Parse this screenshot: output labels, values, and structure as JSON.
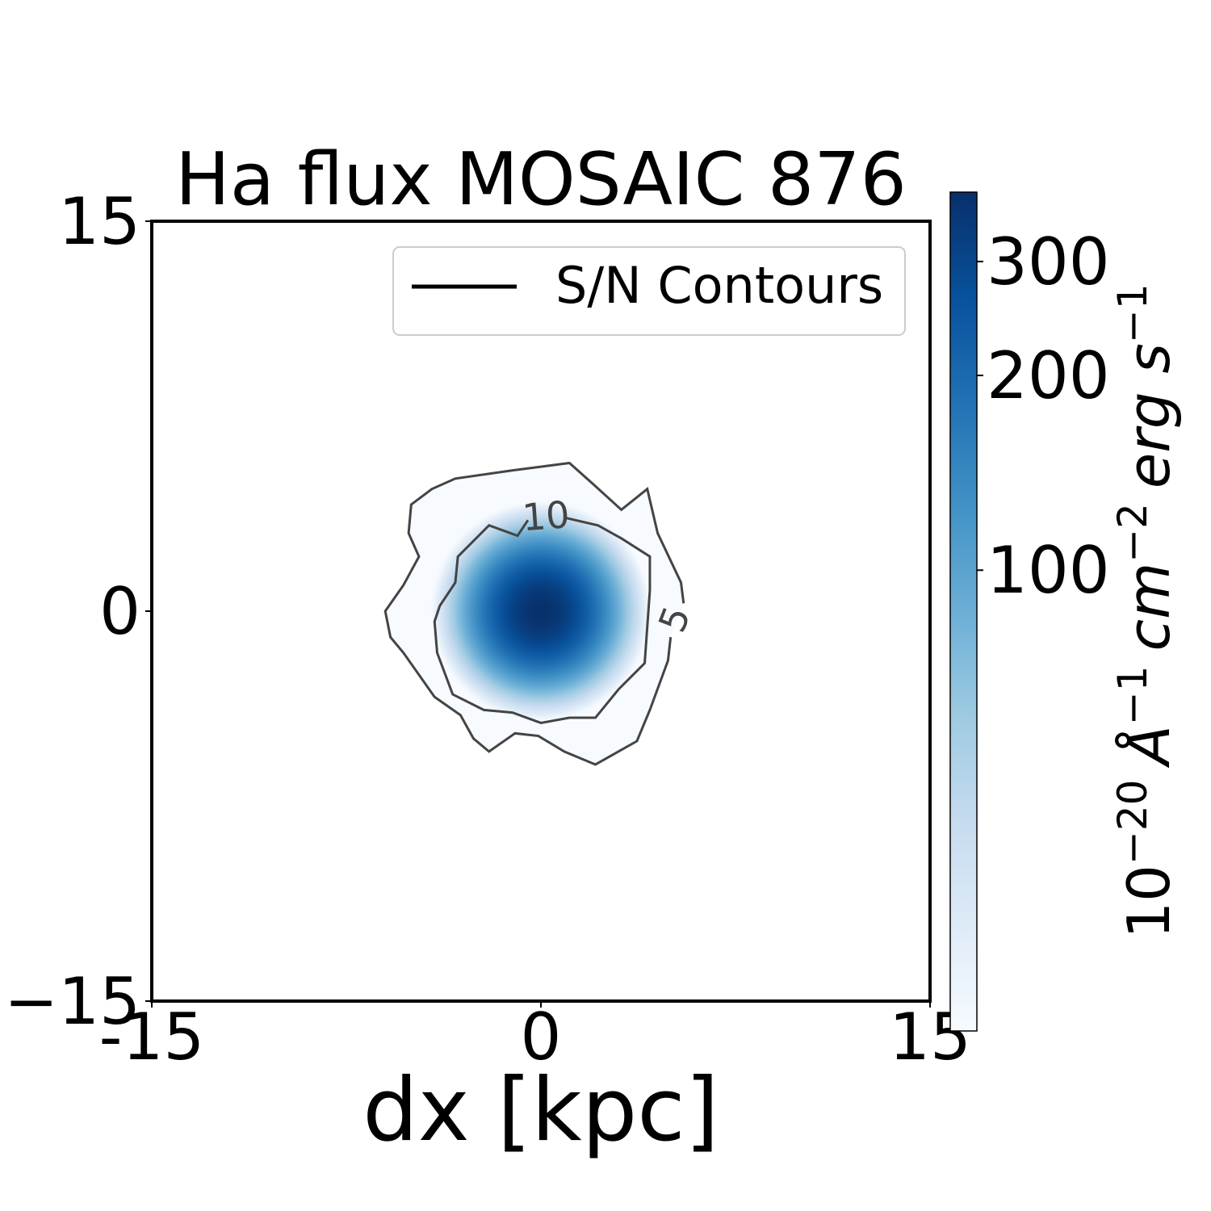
{
  "chart_data": {
    "type": "image_contour",
    "title": "Ha flux MOSAIC 876",
    "xlabel": "dx [kpc]",
    "xlim": [
      -15,
      15
    ],
    "ylim": [
      -15,
      15
    ],
    "xticks": [
      -15,
      0,
      15
    ],
    "yticks": [
      {
        "value": -15,
        "label": "−15"
      },
      0,
      15
    ],
    "image": {
      "center": [
        0,
        0
      ],
      "peak": 384,
      "sigma": 1.73
    },
    "colormap": [
      "#f7fbff",
      "#deebf7",
      "#c6dbef",
      "#9ecae1",
      "#6baed6",
      "#4292c6",
      "#2171b5",
      "#08519c",
      "#08306b"
    ],
    "colorbar": {
      "clim": [
        19.4,
        384
      ],
      "log": true,
      "ticks": [
        100,
        200,
        300
      ],
      "label_parts": [
        [
          "10",
          "−20"
        ],
        [
          "Å",
          "−1"
        ],
        [
          "cm",
          "−2"
        ],
        [
          "erg s",
          "−1"
        ]
      ]
    },
    "legend": {
      "label": "S/N Contours",
      "color": "#000000",
      "loc": "upper right"
    },
    "contour_color": "#444444",
    "contours": [
      {
        "level": 10,
        "x": [
          0.9,
          2.2,
          3.1,
          4.2,
          4.2,
          4.0,
          3.0,
          2.1,
          1.1,
          0.0,
          -1.1,
          -2.2,
          -3.4,
          -4.0,
          -4.1,
          -3.9,
          -3.3,
          -3.2,
          -2.0,
          -0.9,
          -0.5
        ],
        "y": [
          3.6,
          3.3,
          2.8,
          2.1,
          0.8,
          -2.0,
          -3.0,
          -4.1,
          -4.1,
          -4.3,
          -3.9,
          -3.8,
          -3.2,
          -1.6,
          -0.4,
          0.2,
          1.1,
          2.1,
          3.3,
          2.9,
          3.5
        ]
      },
      {
        "level": 5,
        "x": [
          5.0,
          4.9,
          4.2,
          3.7,
          2.1,
          0.9,
          -0.1,
          -1.0,
          -2.0,
          -2.6,
          -3.1,
          -4.1,
          -5.3,
          -5.8,
          -6.0,
          -5.3,
          -4.7,
          -5.1,
          -5.0,
          -4.2,
          -3.3,
          -1.2,
          1.1,
          2.0,
          3.1,
          4.1,
          4.5,
          5.4,
          5.5
        ],
        "y": [
          -1.0,
          -1.9,
          -3.8,
          -5.0,
          -5.9,
          -5.4,
          -4.8,
          -4.7,
          -5.4,
          -4.9,
          -4.0,
          -3.3,
          -1.6,
          -1.0,
          0.0,
          1.0,
          2.1,
          3.0,
          4.1,
          4.7,
          5.1,
          5.4,
          5.7,
          4.9,
          3.9,
          4.7,
          3.0,
          1.1,
          0.3
        ]
      }
    ]
  }
}
